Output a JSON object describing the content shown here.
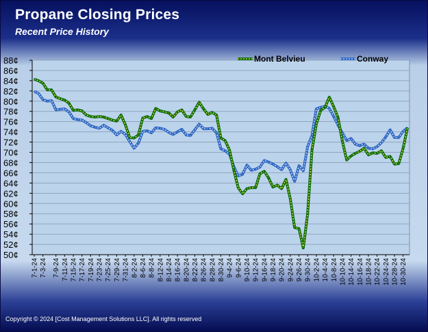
{
  "header": {
    "title": "Propane Closing Prices",
    "subtitle": "Recent Price History"
  },
  "footer": {
    "copyright": "Copyright © 2024 [Cost Management Solutions LLC].  All rights reserved"
  },
  "chart_data": {
    "type": "line",
    "y_ticks": [
      "50¢",
      "52¢",
      "54¢",
      "56¢",
      "58¢",
      "60¢",
      "62¢",
      "64¢",
      "66¢",
      "68¢",
      "70¢",
      "72¢",
      "74¢",
      "76¢",
      "78¢",
      "80¢",
      "82¢",
      "84¢",
      "86¢",
      "88¢"
    ],
    "ylim": [
      50,
      88
    ],
    "grid": true,
    "legend_position": "top-right",
    "x": [
      "7-1-24",
      "7-2-24",
      "7-3-24",
      "7-5-24",
      "7-8-24",
      "7-9-24",
      "7-10-24",
      "7-11-24",
      "7-12-24",
      "7-15-24",
      "7-16-24",
      "7-17-24",
      "7-18-24",
      "7-19-24",
      "7-22-24",
      "7-23-24",
      "7-24-24",
      "7-25-24",
      "7-26-24",
      "7-29-24",
      "7-30-24",
      "7-31-24",
      "8-1-24",
      "8-2-24",
      "8-5-24",
      "8-6-24",
      "8-7-24",
      "8-8-24",
      "8-9-24",
      "8-12-24",
      "8-13-24",
      "8-14-24",
      "8-15-24",
      "8-16-24",
      "8-19-24",
      "8-20-24",
      "8-21-24",
      "8-22-24",
      "8-23-24",
      "8-26-24",
      "8-27-24",
      "8-28-24",
      "8-29-24",
      "8-30-24",
      "9-3-24",
      "9-4-24",
      "9-5-24",
      "9-6-24",
      "9-9-24",
      "9-10-24",
      "9-11-24",
      "9-12-24",
      "9-13-24",
      "9-16-24",
      "9-17-24",
      "9-18-24",
      "9-19-24",
      "9-20-24",
      "9-23-24",
      "9-24-24",
      "9-25-24",
      "9-26-24",
      "9-27-24",
      "9-30-24",
      "10-1-24",
      "10-2-24",
      "10-3-24",
      "10-4-24",
      "10-7-24",
      "10-8-24",
      "10-9-24",
      "10-10-24",
      "10-11-24",
      "10-14-24",
      "10-15-24",
      "10-16-24",
      "10-17-24",
      "10-18-24",
      "10-21-24",
      "10-22-24",
      "10-23-24",
      "10-24-24",
      "10-25-24",
      "10-28-24",
      "10-29-24",
      "10-30-24",
      "10-31-24"
    ],
    "x_tick_labels": [
      "7-1-24",
      "7-3-24",
      "7-9-24",
      "7-11-24",
      "7-15-24",
      "7-17-24",
      "7-19-24",
      "7-23-24",
      "7-25-24",
      "7-29-24",
      "7-31-24",
      "8-2-24",
      "8-6-24",
      "8-8-24",
      "8-12-24",
      "8-14-24",
      "8-16-24",
      "8-20-24",
      "8-22-24",
      "8-26-24",
      "8-28-24",
      "8-30-24",
      "9-4-24",
      "9-6-24",
      "9-10-24",
      "9-12-24",
      "9-16-24",
      "9-18-24",
      "9-20-24",
      "9-24-24",
      "9-26-24",
      "9-30-24",
      "10-2-24",
      "10-4-24",
      "10-8-24",
      "10-10-24",
      "10-14-24",
      "10-16-24",
      "10-18-24",
      "10-22-24",
      "10-24-24",
      "10-28-24",
      "10-30-24"
    ],
    "series": [
      {
        "name": "Mont Belvieu",
        "color": "#0b6a0b",
        "dash_color": "#f0e84a",
        "values": [
          84.3,
          84.0,
          83.5,
          82.2,
          82.2,
          80.8,
          80.5,
          80.2,
          79.6,
          78.2,
          78.3,
          78.1,
          77.3,
          77.0,
          76.9,
          77.0,
          76.9,
          76.6,
          76.3,
          76.1,
          77.3,
          75.4,
          72.9,
          72.8,
          73.4,
          76.7,
          77.0,
          76.6,
          78.6,
          78.1,
          77.9,
          77.7,
          76.9,
          77.9,
          78.3,
          77.0,
          76.9,
          78.3,
          79.8,
          78.5,
          77.4,
          77.8,
          77.3,
          72.8,
          72.3,
          70.4,
          66.5,
          63.1,
          61.9,
          62.9,
          63.1,
          63.1,
          65.8,
          66.3,
          65.0,
          63.2,
          63.6,
          62.9,
          64.7,
          60.9,
          55.3,
          55.1,
          51.3,
          58.0,
          70.5,
          75.5,
          78.2,
          78.8,
          80.8,
          78.9,
          76.8,
          72.2,
          68.5,
          69.3,
          69.8,
          70.2,
          70.8,
          69.5,
          69.9,
          69.8,
          70.3,
          69.0,
          69.2,
          67.7,
          67.8,
          70.8,
          74.8
        ]
      },
      {
        "name": "Conway",
        "color": "#2e66c2",
        "dash_color": "#d6e6f7",
        "values": [
          81.9,
          81.5,
          80.3,
          80.0,
          80.1,
          78.3,
          78.4,
          78.5,
          77.9,
          76.6,
          76.4,
          76.3,
          75.8,
          75.2,
          74.9,
          74.7,
          75.3,
          74.8,
          74.3,
          73.4,
          74.1,
          73.5,
          72.1,
          70.8,
          71.8,
          74.1,
          74.2,
          73.8,
          74.8,
          74.7,
          74.5,
          73.9,
          73.5,
          74.0,
          74.5,
          73.4,
          73.3,
          74.4,
          75.5,
          74.6,
          74.6,
          74.7,
          73.8,
          70.7,
          70.3,
          69.6,
          67.2,
          65.4,
          65.7,
          67.5,
          66.5,
          66.7,
          67.1,
          68.4,
          68.1,
          67.7,
          67.2,
          66.6,
          67.9,
          66.6,
          64.3,
          67.4,
          66.4,
          71.1,
          73.3,
          78.5,
          78.8,
          79.0,
          78.6,
          77.0,
          75.3,
          73.8,
          72.3,
          72.7,
          71.6,
          71.3,
          71.6,
          70.8,
          70.7,
          71.1,
          71.9,
          73.0,
          74.4,
          72.9,
          72.9,
          74.1,
          74.8
        ]
      }
    ]
  }
}
